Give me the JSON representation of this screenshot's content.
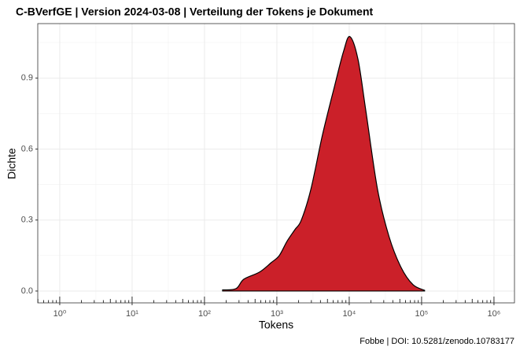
{
  "chart_data": {
    "type": "density",
    "title": "C-BVerfGE | Version 2024-03-08 | Verteilung der Tokens je Dokument",
    "x_label": "Tokens",
    "y_label": "Dichte",
    "caption": "Fobbe | DOI: 10.5281/zenodo.10783177",
    "x_log": true,
    "grid": true,
    "color": "#cb2029",
    "x": [
      178,
      272,
      350,
      575,
      835,
      1080,
      1380,
      1780,
      2180,
      2950,
      4270,
      6200,
      8300,
      10200,
      13200,
      17000,
      24600,
      35500,
      52000,
      76000,
      110000
    ],
    "values": [
      0.005,
      0.01,
      0.05,
      0.08,
      0.12,
      0.15,
      0.21,
      0.26,
      0.3,
      0.43,
      0.66,
      0.86,
      1.01,
      1.075,
      0.98,
      0.76,
      0.43,
      0.23,
      0.1,
      0.027,
      0.003
    ],
    "xlim": [
      0.497,
      1920000
    ],
    "ylim": [
      -0.05,
      1.13
    ],
    "xticks": [
      {
        "value": 1,
        "label": "10⁰"
      },
      {
        "value": 10,
        "label": "10¹"
      },
      {
        "value": 100,
        "label": "10²"
      },
      {
        "value": 1000,
        "label": "10³"
      },
      {
        "value": 10000,
        "label": "10⁴"
      },
      {
        "value": 100000,
        "label": "10⁵"
      },
      {
        "value": 1000000,
        "label": "10⁶"
      }
    ],
    "yticks": [
      {
        "value": 0,
        "label": "0.0"
      },
      {
        "value": 0.3,
        "label": "0.3"
      },
      {
        "value": 0.6,
        "label": "0.6"
      },
      {
        "value": 0.9,
        "label": "0.9"
      }
    ]
  }
}
